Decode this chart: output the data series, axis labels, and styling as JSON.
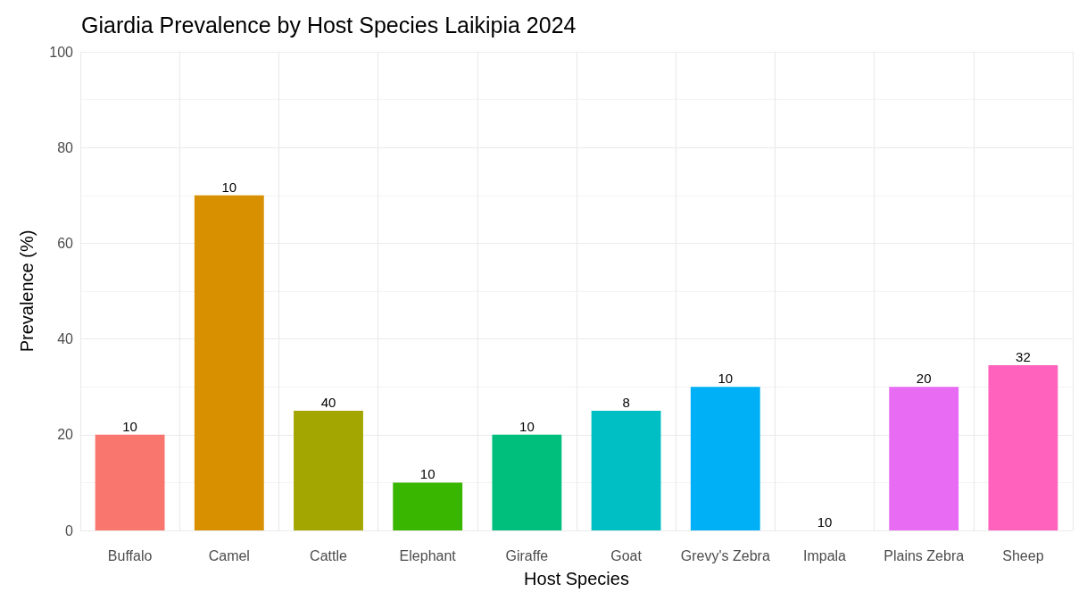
{
  "chart_data": {
    "type": "bar",
    "title": "Giardia Prevalence by Host Species Laikipia 2024",
    "xlabel": "Host Species",
    "ylabel": "Prevalence (%)",
    "categories": [
      "Buffalo",
      "Camel",
      "Cattle",
      "Elephant",
      "Giraffe",
      "Goat",
      "Grevy's Zebra",
      "Impala",
      "Plains Zebra",
      "Sheep"
    ],
    "values": [
      20,
      70,
      25,
      10,
      20,
      25,
      30,
      0,
      30,
      34.5
    ],
    "colors": [
      "#f8766d",
      "#d89000",
      "#a3a500",
      "#39b600",
      "#00bf7d",
      "#00bfc4",
      "#00b0f6",
      "#9590ff",
      "#e76bf3",
      "#ff62bc"
    ],
    "annotations": [
      {
        "text": "10",
        "x": "Buffalo",
        "y": 20
      },
      {
        "text": "10",
        "x": "Camel",
        "y": 70
      },
      {
        "text": "40",
        "x": "Cattle",
        "y": 25
      },
      {
        "text": "10",
        "x": "Elephant",
        "y": 10
      },
      {
        "text": "10",
        "x": "Giraffe",
        "y": 20
      },
      {
        "text": "8",
        "x": "Goat",
        "y": 25
      },
      {
        "text": "10",
        "x": "Grevy's Zebra",
        "y": 30
      },
      {
        "text": "10",
        "x": "Impala",
        "y": 0
      },
      {
        "text": "20",
        "x": "Plains Zebra",
        "y": 30
      },
      {
        "text": "32",
        "x": "Sheep",
        "y": 34.5
      }
    ],
    "ylim": [
      0,
      100
    ],
    "yticks": [
      0,
      20,
      40,
      60,
      80,
      100
    ],
    "grid": true
  }
}
